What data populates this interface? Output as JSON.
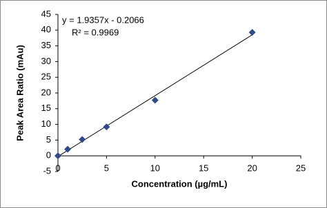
{
  "chart_data": {
    "type": "scatter",
    "x_label": "Concentration (µg/mL)",
    "y_label": "Peak Area Ratio (mAu)",
    "series": [
      {
        "color": "#2f4b8c",
        "x": [
          0,
          1,
          2.5,
          5,
          10,
          20
        ],
        "values": [
          0,
          2.1,
          5.2,
          9.2,
          17.7,
          39.3
        ]
      }
    ],
    "trendline": {
      "equation": "y = 1.9357x - 0.2066",
      "r_squared": "R² = 0.9969",
      "slope": 1.9357,
      "intercept": -0.2066
    },
    "xlim": [
      0,
      25
    ],
    "xticks": [
      0,
      5,
      10,
      15,
      20,
      25
    ],
    "ylim": [
      -5,
      45
    ],
    "yticks": [
      -5,
      0,
      5,
      10,
      15,
      20,
      25,
      30,
      35,
      40,
      45
    ]
  }
}
